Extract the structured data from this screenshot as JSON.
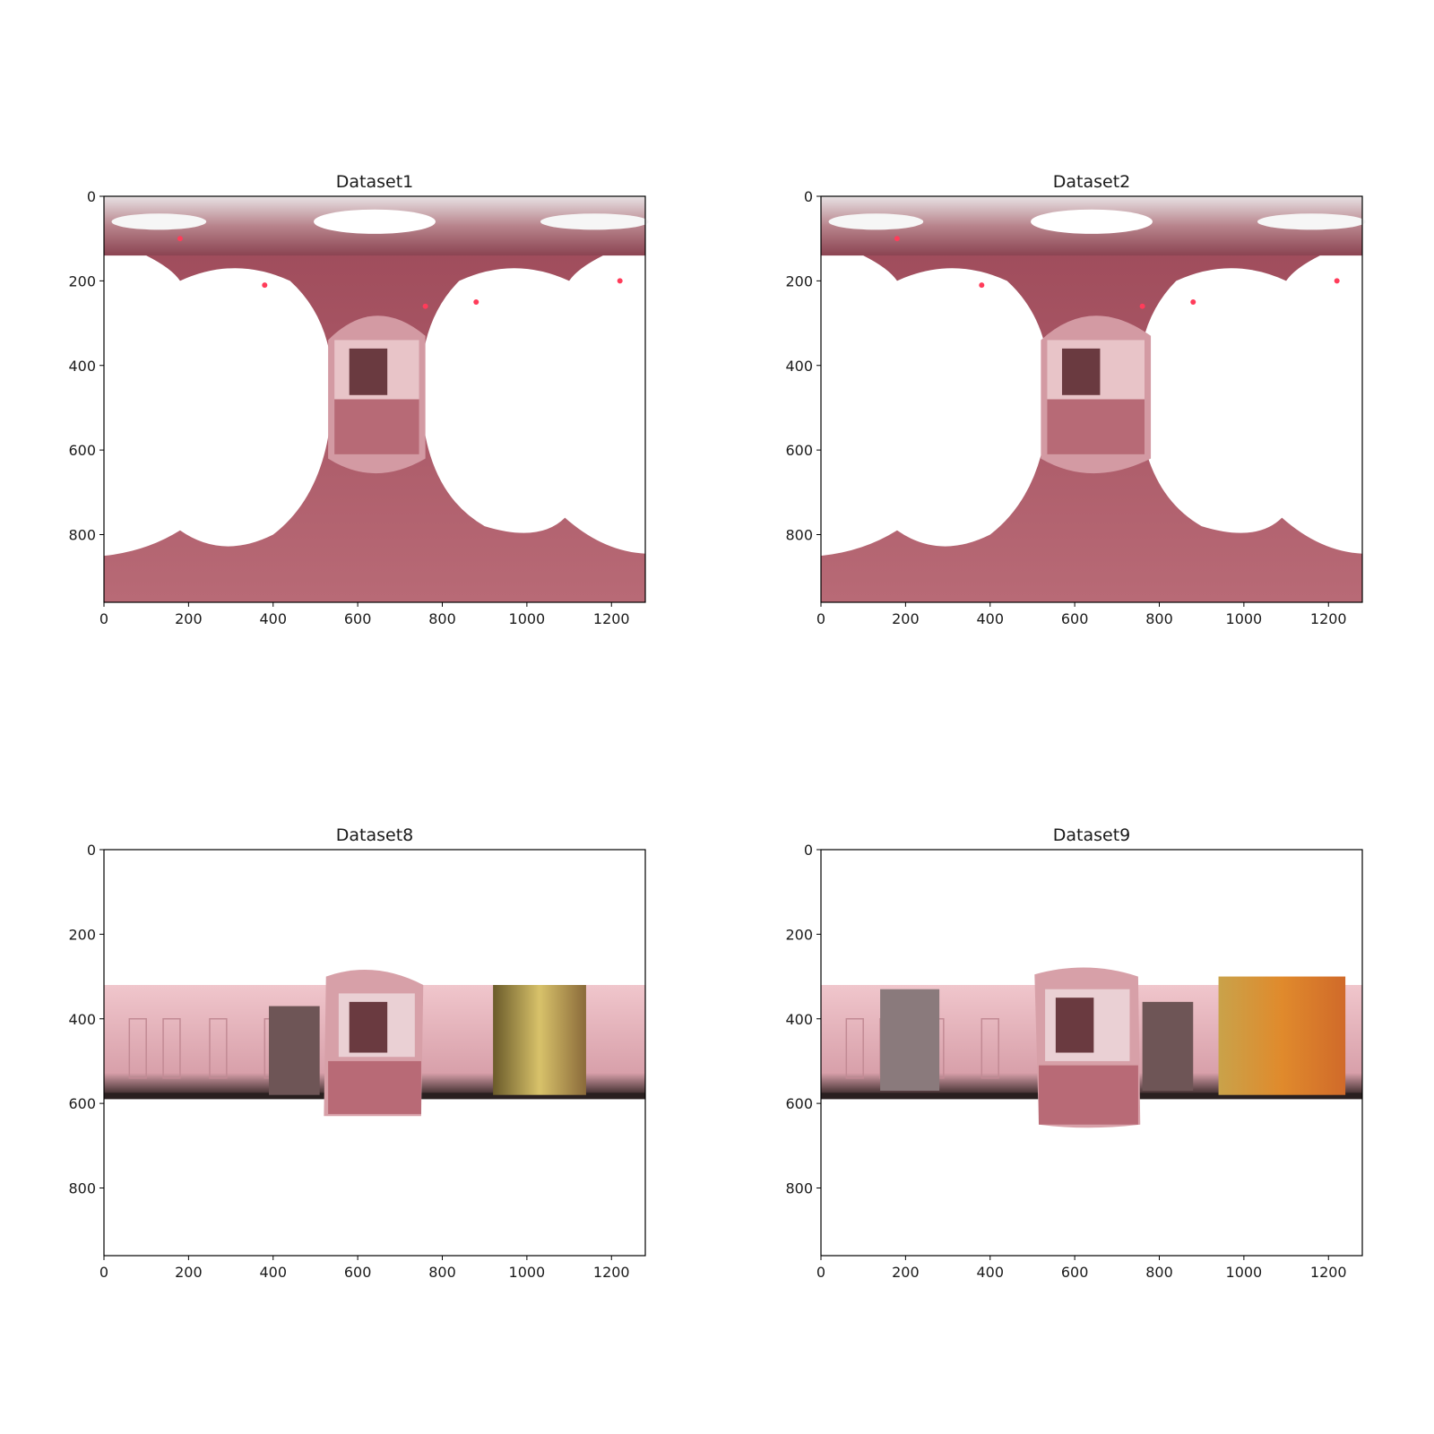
{
  "figure": {
    "panels": [
      {
        "title": "Dataset1",
        "image": "equirectangular-panorama-ceiling-and-floor",
        "x_ticks": [
          "0",
          "200",
          "400",
          "600",
          "800",
          "1000",
          "1200"
        ],
        "y_ticks": [
          "0",
          "200",
          "400",
          "600",
          "800"
        ],
        "xlim": [
          0,
          1280
        ],
        "ylim": [
          960,
          0
        ]
      },
      {
        "title": "Dataset2",
        "image": "equirectangular-panorama-ceiling-and-floor",
        "x_ticks": [
          "0",
          "200",
          "400",
          "600",
          "800",
          "1000",
          "1200"
        ],
        "y_ticks": [
          "0",
          "200",
          "400",
          "600",
          "800"
        ],
        "xlim": [
          0,
          1280
        ],
        "ylim": [
          960,
          0
        ]
      },
      {
        "title": "Dataset8",
        "image": "equirectangular-panorama-wall-band",
        "x_ticks": [
          "0",
          "200",
          "400",
          "600",
          "800",
          "1000",
          "1200"
        ],
        "y_ticks": [
          "0",
          "200",
          "400",
          "600",
          "800"
        ],
        "xlim": [
          0,
          1280
        ],
        "ylim": [
          960,
          0
        ]
      },
      {
        "title": "Dataset9",
        "image": "equirectangular-panorama-wall-band",
        "x_ticks": [
          "0",
          "200",
          "400",
          "600",
          "800",
          "1000",
          "1200"
        ],
        "y_ticks": [
          "0",
          "200",
          "400",
          "600",
          "800"
        ],
        "xlim": [
          0,
          1280
        ],
        "ylim": [
          960,
          0
        ]
      }
    ]
  },
  "colors": {
    "floor": "#a64e5c",
    "ceiling": "#b06a74",
    "wall": "#e9b6bd",
    "door_frame": "#5a3a3a",
    "orange_wall": "#d9832e"
  }
}
